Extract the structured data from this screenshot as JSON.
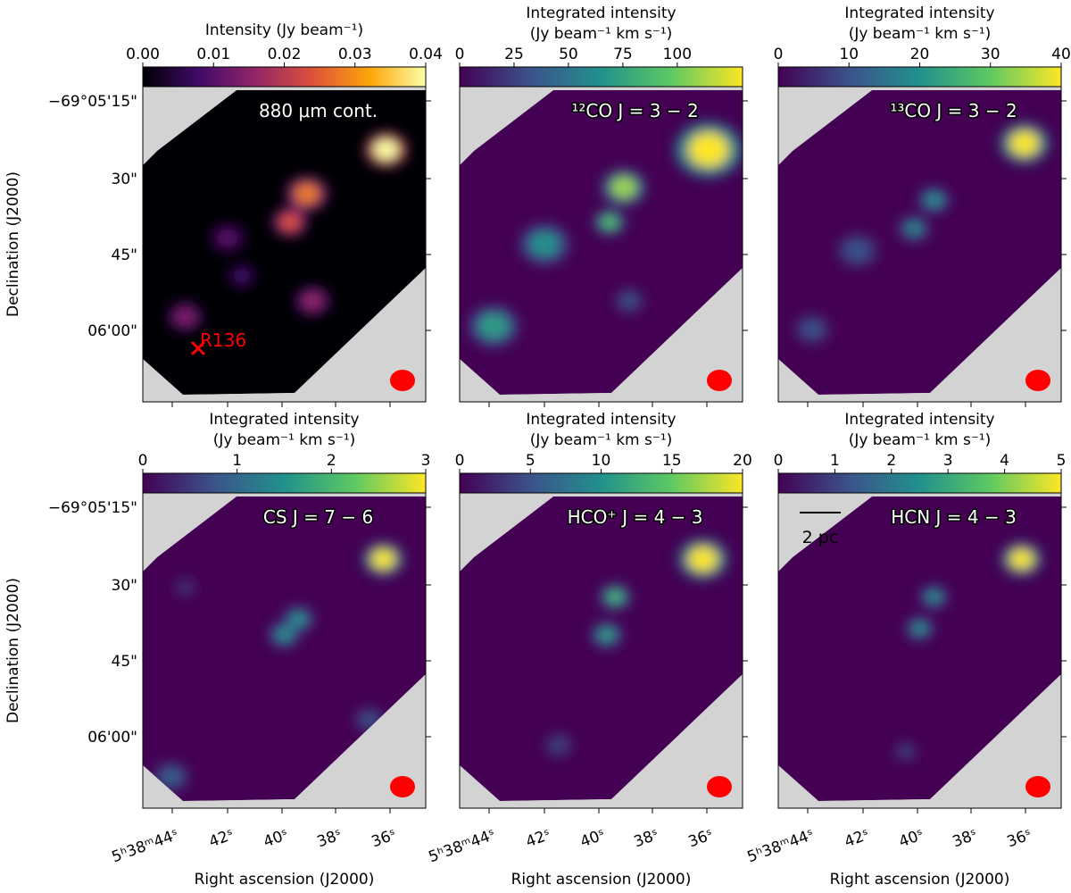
{
  "figure": {
    "ylabel": "Declination (J2000)",
    "xlabel": "Right ascension (J2000)",
    "yticks": [
      "−69°05'15\"",
      "30\"",
      "45\"",
      "06'00\""
    ],
    "xticks": [
      "5ʰ38ᵐ44ˢ",
      "42ˢ",
      "40ˢ",
      "38ˢ",
      "36ˢ"
    ],
    "source": "R136",
    "scale": "2 pc",
    "panels": [
      {
        "label": "880 μm cont.",
        "colormap": "inferno",
        "colorbar": {
          "label": [
            "Intensity (Jy beam⁻¹)"
          ],
          "lim": [
            0,
            0.04
          ],
          "ticks": [
            {
              "value": 0,
              "label": "0.00"
            },
            {
              "value": 0.01,
              "label": "0.01"
            },
            {
              "value": 0.02,
              "label": "0.02"
            },
            {
              "value": 0.03,
              "label": "0.03"
            },
            {
              "value": 0.04,
              "label": "0.04"
            }
          ]
        }
      },
      {
        "label": "¹²CO J = 3 − 2",
        "colormap": "viridis",
        "colorbar": {
          "label": [
            "Integrated intensity",
            "(Jy beam⁻¹ km s⁻¹)"
          ],
          "lim": [
            0,
            130
          ],
          "ticks": [
            0,
            25,
            50,
            75,
            100
          ]
        }
      },
      {
        "label": "¹³CO J = 3 − 2",
        "colormap": "viridis",
        "colorbar": {
          "label": [
            "Integrated intensity",
            "(Jy beam⁻¹ km s⁻¹)"
          ],
          "lim": [
            0,
            40
          ],
          "ticks": [
            0,
            10,
            20,
            30,
            40
          ]
        }
      },
      {
        "label": "CS J = 7 − 6",
        "colormap": "viridis",
        "colorbar": {
          "label": [
            "Integrated intensity",
            "(Jy beam⁻¹ km s⁻¹)"
          ],
          "lim": [
            0,
            3
          ],
          "ticks": [
            0,
            1,
            2,
            3
          ]
        }
      },
      {
        "label": "HCO⁺ J = 4 − 3",
        "colormap": "viridis",
        "colorbar": {
          "label": [
            "Integrated intensity",
            "(Jy beam⁻¹ km s⁻¹)"
          ],
          "lim": [
            0,
            20
          ],
          "ticks": [
            0,
            5,
            10,
            15,
            20
          ]
        }
      },
      {
        "label": "HCN J = 4 − 3",
        "colormap": "viridis",
        "colorbar": {
          "label": [
            "Integrated intensity",
            "(Jy beam⁻¹ km s⁻¹)"
          ],
          "lim": [
            0,
            5
          ],
          "ticks": [
            0,
            1,
            2,
            3,
            4,
            5
          ]
        }
      }
    ]
  }
}
